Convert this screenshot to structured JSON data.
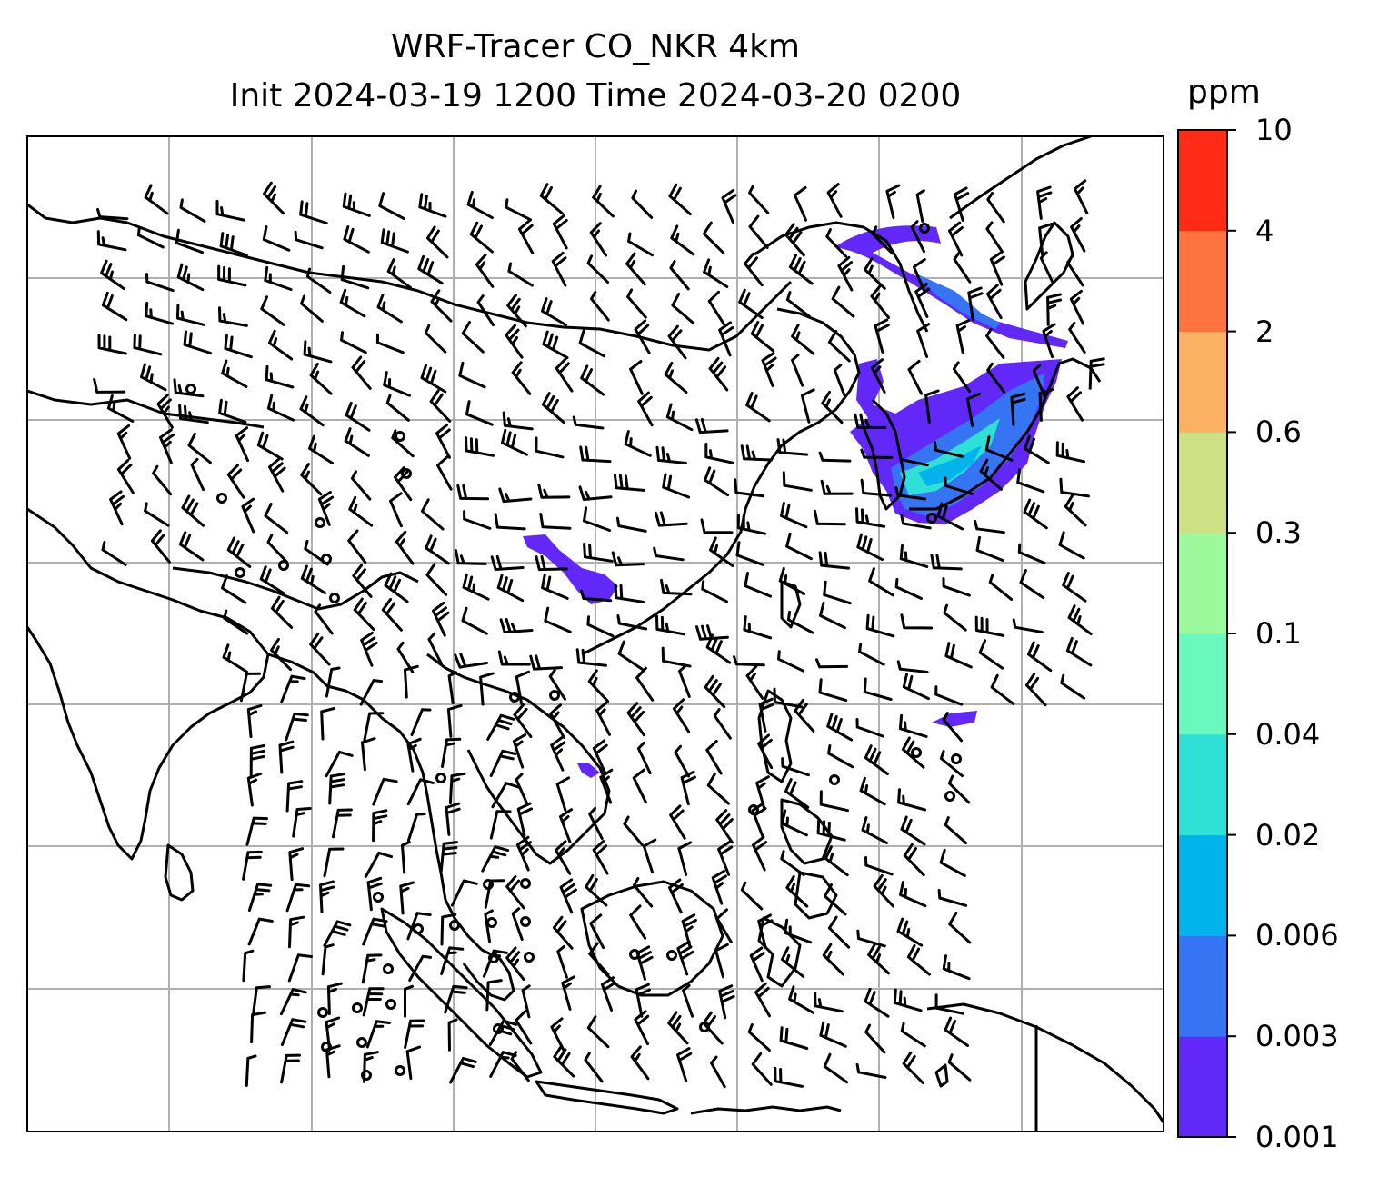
{
  "title": {
    "line1": "WRF-Tracer CO_NKR 4km",
    "line2": "Init 2024-03-19 1200 Time 2024-03-20 0200"
  },
  "colorbar": {
    "unit": "ppm",
    "levels": [
      "0.001",
      "0.003",
      "0.006",
      "0.02",
      "0.04",
      "0.1",
      "0.3",
      "0.6",
      "2",
      "4",
      "10"
    ],
    "colors": [
      "#6128f8",
      "#3574f2",
      "#00b3ea",
      "#2ee0d6",
      "#69f8be",
      "#9cfa9c",
      "#cee083",
      "#fdb263",
      "#ff7340",
      "#ff2b17"
    ]
  },
  "map": {
    "plume_colors": [
      "#6128f8",
      "#3574f2",
      "#2ee0d6",
      "#00b3ea"
    ],
    "gridline_color": "#b0b0b0",
    "coastline_color": "#000000"
  }
}
